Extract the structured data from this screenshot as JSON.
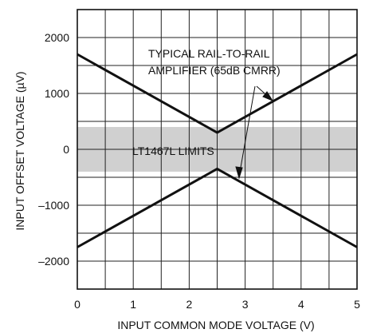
{
  "chart_data": {
    "type": "line",
    "xlabel": "INPUT COMMON MODE VOLTAGE (V)",
    "ylabel": "INPUT OFFSET VOLTAGE (µV)",
    "xlim": [
      0,
      5
    ],
    "ylim": [
      -2500,
      2500
    ],
    "xticks": [
      0,
      1,
      2,
      3,
      4,
      5
    ],
    "yticks": [
      2000,
      1000,
      0,
      -1000,
      -2000
    ],
    "ytick_labels": [
      "2000",
      "1000",
      "0",
      "–1000",
      "–2000"
    ],
    "grid": true,
    "band": {
      "label": "LT1467L LIMITS",
      "ymin": -400,
      "ymax": 400,
      "color": "#d0d0d0"
    },
    "series": [
      {
        "x": [
          0,
          2.5,
          5
        ],
        "y": [
          1700,
          300,
          1700
        ]
      },
      {
        "x": [
          0,
          2.5,
          5
        ],
        "y": [
          -1750,
          -350,
          -1750
        ]
      }
    ],
    "annotation": {
      "line1": "TYPICAL RAIL-TO-RAIL",
      "line2": "AMPLIFIER (65dB CMRR)"
    }
  }
}
